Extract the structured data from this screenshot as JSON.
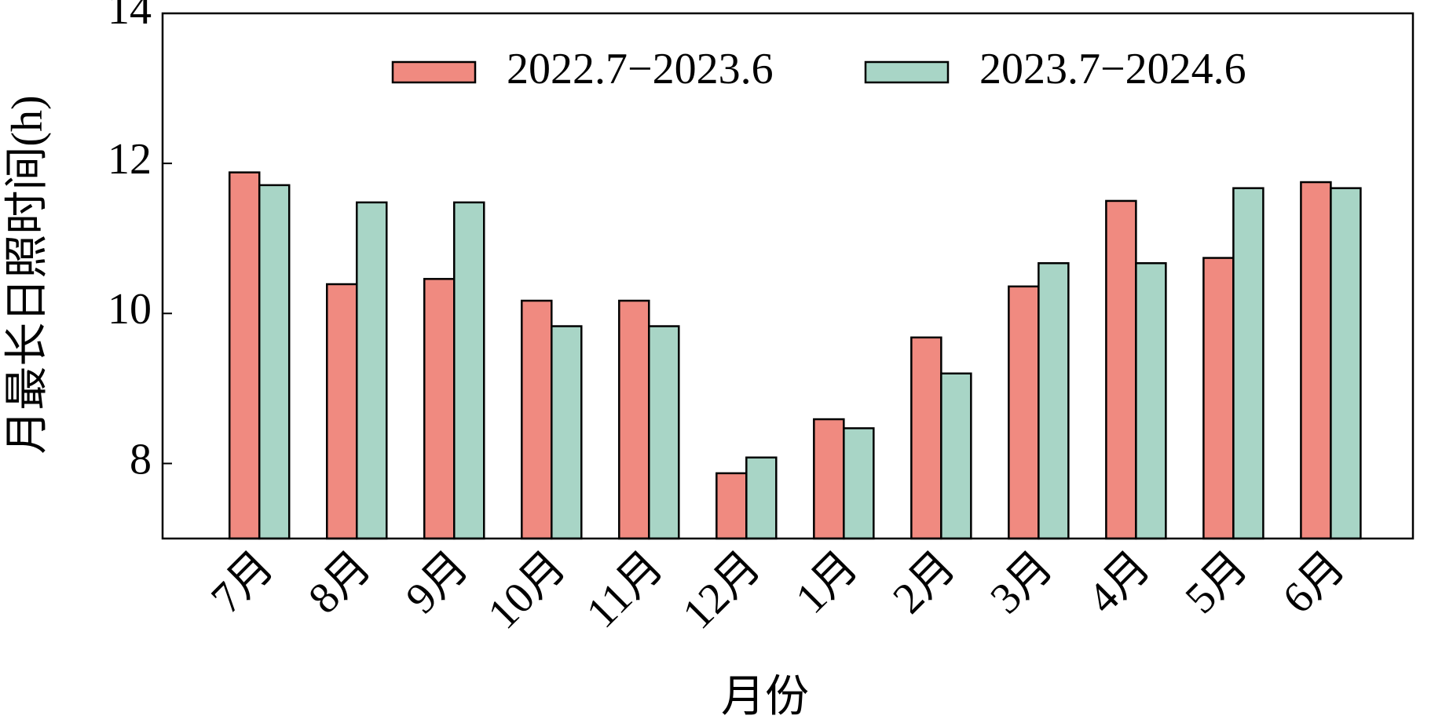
{
  "chart_data": {
    "type": "bar",
    "x_label": "月份",
    "y_label": "月最长日照时间(h)",
    "categories": [
      "7月",
      "8月",
      "9月",
      "10月",
      "11月",
      "12月",
      "1月",
      "2月",
      "3月",
      "4月",
      "5月",
      "6月"
    ],
    "series": [
      {
        "name": "2022.7−2023.6",
        "color": "#f08a80",
        "values": [
          11.88,
          10.39,
          10.46,
          10.17,
          10.17,
          7.87,
          8.59,
          9.68,
          10.36,
          11.5,
          10.74,
          11.75
        ]
      },
      {
        "name": "2023.7−2024.6",
        "color": "#a8d5c6",
        "values": [
          11.71,
          11.48,
          11.48,
          9.83,
          9.83,
          8.08,
          8.47,
          9.2,
          10.67,
          10.67,
          11.67,
          11.67
        ]
      }
    ],
    "ylim": [
      7,
      14
    ],
    "yticks": [
      8,
      10,
      12,
      14
    ],
    "legend": "top"
  }
}
